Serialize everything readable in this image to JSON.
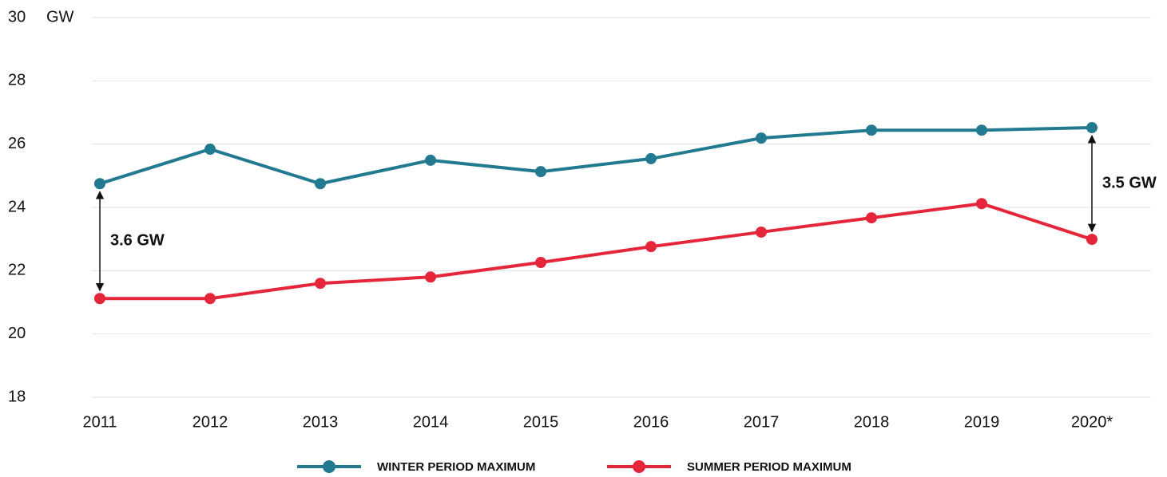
{
  "chart_data": {
    "type": "line",
    "y_label": "GW",
    "categories": [
      "2011",
      "2012",
      "2013",
      "2014",
      "2015",
      "2016",
      "2017",
      "2018",
      "2019",
      "2020*"
    ],
    "series": [
      {
        "name": "WINTER PERIOD MAXIMUM",
        "color": "#217a8f",
        "values": [
          24.75,
          25.84,
          24.75,
          25.49,
          25.13,
          25.54,
          26.19,
          26.44,
          26.44,
          26.52
        ]
      },
      {
        "name": "SUMMER PERIOD MAXIMUM",
        "color": "#e5263a",
        "values": [
          21.12,
          21.12,
          21.6,
          21.8,
          22.26,
          22.76,
          23.22,
          23.67,
          24.12,
          22.99
        ]
      }
    ],
    "annotations": [
      "3.6 GW",
      "3.5 GW"
    ],
    "ylim": [
      18,
      30
    ],
    "yticks": [
      18,
      20,
      22,
      24,
      26,
      28,
      30
    ],
    "grid": true,
    "legend": "bottom"
  }
}
